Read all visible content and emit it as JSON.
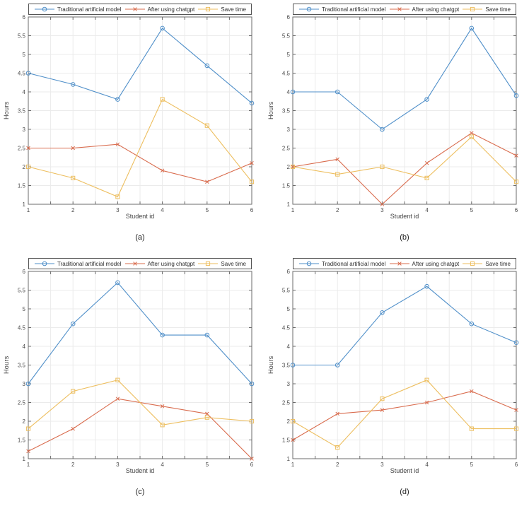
{
  "figure": {
    "xlabel": "Student id",
    "ylabel": "Hours",
    "series_names": [
      "Traditional artificial model",
      "After using chatgpt",
      "Save time"
    ],
    "palette": {
      "traditional": "#4F8FC9",
      "chatgpt": "#D96C4E",
      "save_time": "#EDBE5E"
    }
  },
  "chart_data": [
    {
      "type": "line",
      "label": "(a)",
      "xlabel": "Student id",
      "ylabel": "Hours",
      "xlim": [
        1,
        6
      ],
      "ylim": [
        1,
        6
      ],
      "tick_step": 0.5,
      "grid": true,
      "legend_position": "top",
      "x": [
        1,
        2,
        3,
        4,
        5,
        6
      ],
      "series": [
        {
          "name": "Traditional artificial model",
          "color": "#4F8FC9",
          "marker": "circle",
          "values": [
            4.5,
            4.2,
            3.8,
            5.7,
            4.7,
            3.7
          ]
        },
        {
          "name": "After using chatgpt",
          "color": "#D96C4E",
          "marker": "x",
          "values": [
            2.5,
            2.5,
            2.6,
            1.9,
            1.6,
            2.1
          ]
        },
        {
          "name": "Save time",
          "color": "#EDBE5E",
          "marker": "square",
          "values": [
            2.0,
            1.7,
            1.2,
            3.8,
            3.1,
            1.6
          ]
        }
      ]
    },
    {
      "type": "line",
      "label": "(b)",
      "xlabel": "Student id",
      "ylabel": "Hours",
      "xlim": [
        1,
        6
      ],
      "ylim": [
        1,
        6
      ],
      "tick_step": 0.5,
      "grid": true,
      "legend_position": "top",
      "x": [
        1,
        2,
        3,
        4,
        5,
        6
      ],
      "series": [
        {
          "name": "Traditional artificial model",
          "color": "#4F8FC9",
          "marker": "circle",
          "values": [
            4.0,
            4.0,
            3.0,
            3.8,
            5.7,
            3.9
          ]
        },
        {
          "name": "After using chatgpt",
          "color": "#D96C4E",
          "marker": "x",
          "values": [
            2.0,
            2.2,
            1.0,
            2.1,
            2.9,
            2.3
          ]
        },
        {
          "name": "Save time",
          "color": "#EDBE5E",
          "marker": "square",
          "values": [
            2.0,
            1.8,
            2.0,
            1.7,
            2.8,
            1.6
          ]
        }
      ]
    },
    {
      "type": "line",
      "label": "(c)",
      "xlabel": "Student id",
      "ylabel": "Hours",
      "xlim": [
        1,
        6
      ],
      "ylim": [
        1,
        6
      ],
      "tick_step": 0.5,
      "grid": true,
      "legend_position": "top",
      "x": [
        1,
        2,
        3,
        4,
        5,
        6
      ],
      "series": [
        {
          "name": "Traditional artificial model",
          "color": "#4F8FC9",
          "marker": "circle",
          "values": [
            3.0,
            4.6,
            5.7,
            4.3,
            4.3,
            3.0
          ]
        },
        {
          "name": "After using chatgpt",
          "color": "#D96C4E",
          "marker": "x",
          "values": [
            1.2,
            1.8,
            2.6,
            2.4,
            2.2,
            1.0
          ]
        },
        {
          "name": "Save time",
          "color": "#EDBE5E",
          "marker": "square",
          "values": [
            1.8,
            2.8,
            3.1,
            1.9,
            2.1,
            2.0
          ]
        }
      ]
    },
    {
      "type": "line",
      "label": "(d)",
      "xlabel": "Student id",
      "ylabel": "Hours",
      "xlim": [
        1,
        6
      ],
      "ylim": [
        1,
        6
      ],
      "tick_step": 0.5,
      "grid": true,
      "legend_position": "top",
      "x": [
        1,
        2,
        3,
        4,
        5,
        6
      ],
      "series": [
        {
          "name": "Traditional artificial model",
          "color": "#4F8FC9",
          "marker": "circle",
          "values": [
            3.5,
            3.5,
            4.9,
            5.6,
            4.6,
            4.1
          ]
        },
        {
          "name": "After using chatgpt",
          "color": "#D96C4E",
          "marker": "x",
          "values": [
            1.5,
            2.2,
            2.3,
            2.5,
            2.8,
            2.3
          ]
        },
        {
          "name": "Save time",
          "color": "#EDBE5E",
          "marker": "square",
          "values": [
            2.0,
            1.3,
            2.6,
            3.1,
            1.8,
            1.8
          ]
        }
      ]
    }
  ]
}
